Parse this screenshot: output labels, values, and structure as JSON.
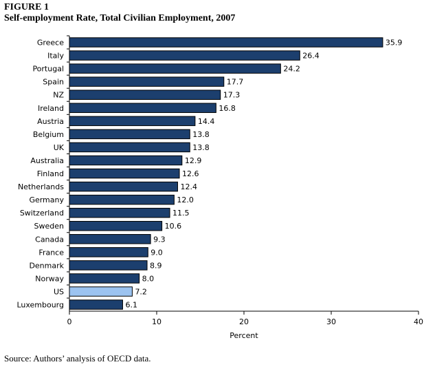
{
  "figure": {
    "label": "FIGURE 1",
    "title": "Self-employment Rate, Total Civilian Employment, 2007",
    "source": "Source:  Authors’ analysis of OECD data."
  },
  "colors": {
    "bar": "#1c3f6e",
    "highlight": "#9cc3f0",
    "outline": "#000000"
  },
  "chart_data": {
    "type": "bar",
    "orientation": "horizontal",
    "title": "Self-employment Rate, Total Civilian Employment, 2007",
    "xlabel": "Percent",
    "ylabel": "",
    "xlim": [
      0,
      40
    ],
    "xticks": [
      0,
      10,
      20,
      30,
      40
    ],
    "grid": false,
    "highlight_category": "US",
    "categories": [
      "Greece",
      "Italy",
      "Portugal",
      "Spain",
      "NZ",
      "Ireland",
      "Austria",
      "Belgium",
      "UK",
      "Australia",
      "Finland",
      "Netherlands",
      "Germany",
      "Switzerland",
      "Sweden",
      "Canada",
      "France",
      "Denmark",
      "Norway",
      "US",
      "Luxembourg"
    ],
    "values": [
      35.9,
      26.4,
      24.2,
      17.7,
      17.3,
      16.8,
      14.4,
      13.8,
      13.8,
      12.9,
      12.6,
      12.4,
      12.0,
      11.5,
      10.6,
      9.3,
      9.0,
      8.9,
      8.0,
      7.2,
      6.1
    ],
    "value_labels": [
      "35.9",
      "26.4",
      "24.2",
      "17.7",
      "17.3",
      "16.8",
      "14.4",
      "13.8",
      "13.8",
      "12.9",
      "12.6",
      "12.4",
      "12.0",
      "11.5",
      "10.6",
      "9.3",
      "9.0",
      "8.9",
      "8.0",
      "7.2",
      "6.1"
    ]
  }
}
